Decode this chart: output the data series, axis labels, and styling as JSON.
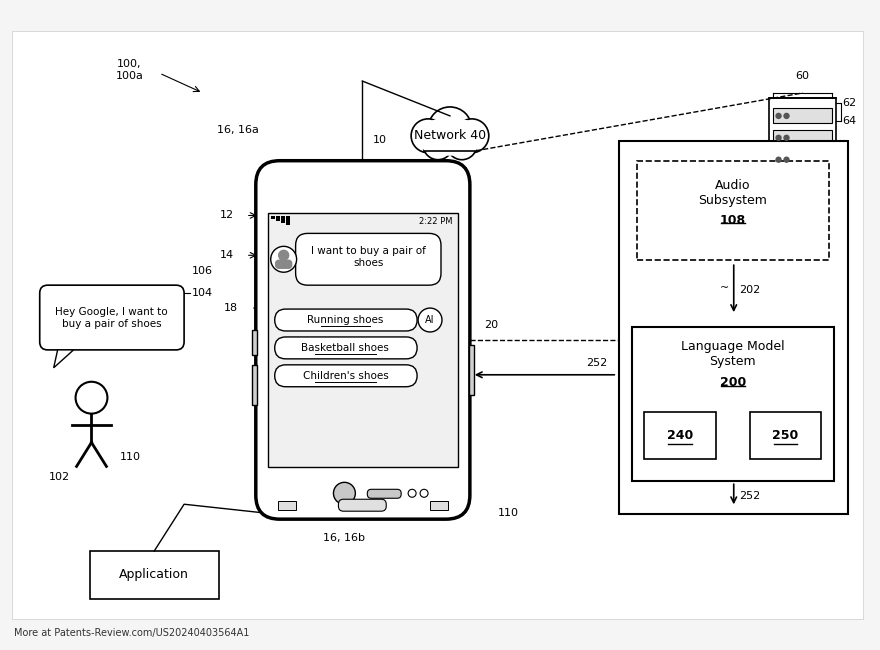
{
  "bg_color": "#f5f5f5",
  "title_bottom": "More at Patents-Review.com/US20240403564A1",
  "labels": {
    "ref_100": "100,\n100a",
    "ref_10": "10",
    "ref_16_16a": "16, 16a",
    "ref_12": "12",
    "ref_14": "14",
    "ref_18": "18",
    "ref_20": "20",
    "ref_252_arrow": "252",
    "ref_102": "102",
    "ref_104": "104",
    "ref_106": "106",
    "ref_110_left": "110",
    "ref_110_bottom": "110",
    "ref_16_16b": "16, 16b",
    "ref_60": "60",
    "ref_62": "62",
    "ref_64": "64",
    "ref_40": "40",
    "ref_202": "202",
    "ref_252_bottom": "252",
    "speech_text": "Hey Google, I want to\nbuy a pair of shoes",
    "app_label": "Application",
    "network_label": "Network 40",
    "audio_sub_title": "Audio\nSubsystem",
    "audio_sub_ref": "108",
    "lm_title": "Language Model\nSystem",
    "lm_ref": "200",
    "lm_240": "240",
    "lm_250": "250",
    "chat_query": "I want to buy a pair of\nshoes",
    "btn1": "Running shoes",
    "btn2": "Basketball shoes",
    "btn3": "Children's shoes",
    "ai_label": "AI",
    "status_bar": "2:22 PM"
  }
}
